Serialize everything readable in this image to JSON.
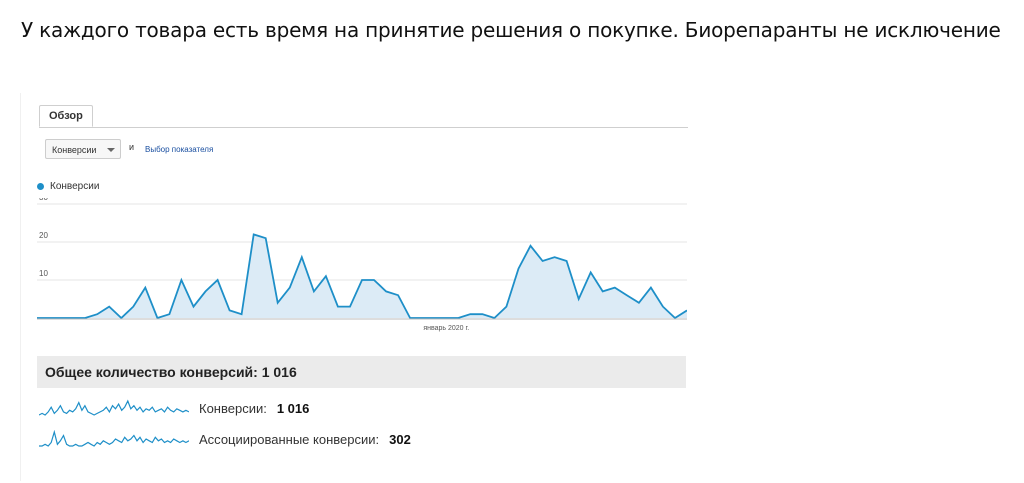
{
  "headline": "У каждого товара есть время на принятие решения о покупке. Биорепаранты не исключение",
  "tab": {
    "label": "Обзор"
  },
  "controls": {
    "metric_select": "Конверсии",
    "and_label": "и",
    "metric_picker": "Выбор показателя"
  },
  "legend": {
    "label": "Конверсии",
    "color": "#1e8fc8"
  },
  "chart_data": {
    "type": "area",
    "series": [
      {
        "name": "Конверсии",
        "values": [
          0,
          0,
          0,
          0,
          0,
          1,
          3,
          0,
          3,
          8,
          0,
          1,
          10,
          3,
          7,
          10,
          2,
          1,
          22,
          21,
          4,
          8,
          16,
          7,
          11,
          3,
          3,
          10,
          10,
          7,
          6,
          0,
          0,
          0,
          0,
          0,
          1,
          1,
          0,
          3,
          13,
          19,
          15,
          16,
          15,
          5,
          12,
          7,
          8,
          6,
          4,
          8,
          3,
          0,
          2
        ]
      }
    ],
    "ylim": [
      0,
      30
    ],
    "yticks": [
      10,
      20,
      30
    ],
    "x_tick_label": "январь 2020 г.",
    "x_tick_index": 34,
    "grid": true
  },
  "summary": {
    "label": "Общее количество конверсий:",
    "value": "1 016"
  },
  "totals": [
    {
      "label": "Конверсии:",
      "value": "1 016"
    },
    {
      "label": "Ассоциированные конверсии:",
      "value": "302"
    }
  ],
  "sparklines": [
    [
      0,
      1,
      0,
      2,
      5,
      1,
      3,
      6,
      2,
      1,
      3,
      2,
      4,
      8,
      3,
      6,
      2,
      1,
      0,
      1,
      2,
      3,
      5,
      2,
      6,
      4,
      7,
      3,
      5,
      9,
      4,
      6,
      3,
      5,
      2,
      4,
      3,
      5,
      2,
      3,
      4,
      2,
      5,
      3,
      2,
      4,
      3,
      2,
      3,
      2
    ],
    [
      0,
      0,
      1,
      0,
      2,
      8,
      1,
      3,
      6,
      1,
      0,
      0,
      1,
      0,
      0,
      1,
      2,
      1,
      0,
      2,
      1,
      3,
      2,
      1,
      2,
      4,
      3,
      2,
      5,
      3,
      4,
      6,
      3,
      5,
      2,
      4,
      3,
      2,
      5,
      3,
      4,
      2,
      3,
      2,
      4,
      3,
      2,
      3,
      2,
      3
    ]
  ]
}
